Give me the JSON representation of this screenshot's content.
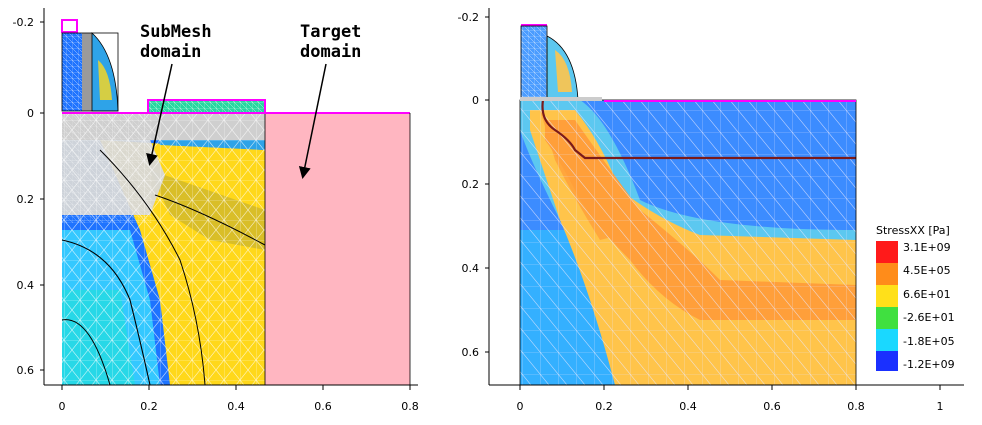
{
  "colors": {
    "magenta": "#ff00ff",
    "target_pink": "#ffb6c1",
    "mesh_line": "#ffffff",
    "grey_region": "#cfcfcf",
    "deep_blue": "#1e73ff",
    "light_blue": "#34c8ff",
    "cyan": "#27d8e7",
    "yellow": "#ffd81a",
    "orange": "#ffab40",
    "dark_red_line": "#7a1a1a"
  },
  "left_plot": {
    "annotations": {
      "submesh_line1": "SubMesh",
      "submesh_line2": "domain",
      "target_line1": "Target",
      "target_line2": "domain"
    },
    "x_ticks": [
      "0",
      "0.2",
      "0.4",
      "0.6",
      "0.8"
    ],
    "y_ticks": [
      "-0.2",
      "0",
      "0.2",
      "0.4",
      "0.6"
    ]
  },
  "right_plot": {
    "x_ticks": [
      "0",
      "0.2",
      "0.4",
      "0.6",
      "0.8",
      "1"
    ],
    "y_ticks": [
      "-0.2",
      "0",
      "0.2",
      "0.4",
      "0.6"
    ],
    "legend": {
      "title": "StressXX [Pa]",
      "entries": [
        "3.1E+09",
        "4.5E+05",
        "6.6E+01",
        "-2.6E+01",
        "-1.8E+05",
        "-1.2E+09"
      ],
      "colors": [
        "#ff1a1a",
        "#ff8c1a",
        "#ffe01a",
        "#40e040",
        "#1ad8ff",
        "#1a30ff"
      ]
    }
  }
}
